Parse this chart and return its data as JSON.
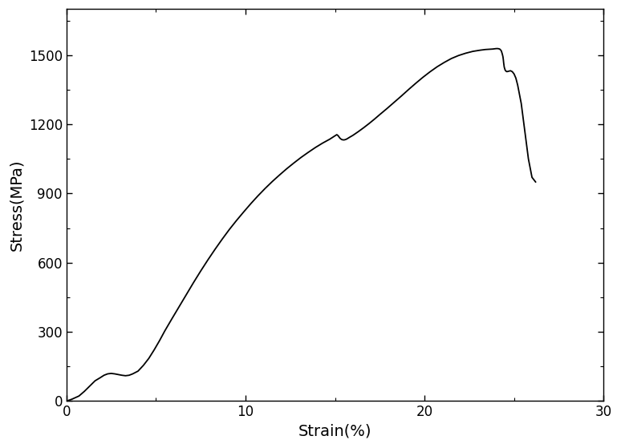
{
  "xlabel": "Strain(%)",
  "ylabel": "Stress(MPa)",
  "xlim": [
    0,
    30
  ],
  "ylim": [
    0,
    1700
  ],
  "xticks": [
    0,
    10,
    20,
    30
  ],
  "yticks": [
    0,
    300,
    600,
    900,
    1200,
    1500
  ],
  "line_color": "#000000",
  "line_width": 1.3,
  "background_color": "#ffffff",
  "curve_points": {
    "strain": [
      0.0,
      0.3,
      0.7,
      1.0,
      1.3,
      1.6,
      1.9,
      2.1,
      2.3,
      2.5,
      2.7,
      2.9,
      3.1,
      3.3,
      3.5,
      3.7,
      4.0,
      4.3,
      4.6,
      4.9,
      5.2,
      5.5,
      5.9,
      6.3,
      6.7,
      7.1,
      7.5,
      7.9,
      8.3,
      8.7,
      9.1,
      9.5,
      9.9,
      10.3,
      10.7,
      11.1,
      11.5,
      11.9,
      12.3,
      12.7,
      13.1,
      13.5,
      13.9,
      14.3,
      14.7,
      15.0,
      15.1,
      15.15,
      15.2,
      15.25,
      15.3,
      15.35,
      15.4,
      15.5,
      15.6,
      15.7,
      15.8,
      16.0,
      16.3,
      16.6,
      16.9,
      17.2,
      17.5,
      17.9,
      18.3,
      18.7,
      19.1,
      19.5,
      19.9,
      20.3,
      20.7,
      21.1,
      21.5,
      21.9,
      22.3,
      22.7,
      23.1,
      23.4,
      23.6,
      23.8,
      23.9,
      24.0,
      24.1,
      24.15,
      24.2,
      24.22,
      24.25,
      24.28,
      24.3,
      24.32,
      24.35,
      24.38,
      24.4,
      24.42,
      24.45,
      24.5,
      24.55,
      24.6,
      24.7,
      24.8,
      24.9,
      25.0,
      25.1,
      25.2,
      25.4,
      25.6,
      25.8,
      26.0,
      26.2
    ],
    "stress": [
      0,
      8,
      22,
      42,
      65,
      88,
      102,
      112,
      118,
      120,
      118,
      115,
      112,
      110,
      112,
      118,
      130,
      155,
      185,
      222,
      262,
      305,
      358,
      410,
      462,
      514,
      564,
      612,
      658,
      702,
      744,
      783,
      820,
      856,
      890,
      922,
      952,
      980,
      1007,
      1032,
      1056,
      1078,
      1099,
      1118,
      1135,
      1150,
      1155,
      1152,
      1148,
      1142,
      1138,
      1135,
      1133,
      1132,
      1134,
      1138,
      1143,
      1152,
      1168,
      1185,
      1203,
      1222,
      1242,
      1268,
      1295,
      1322,
      1350,
      1377,
      1403,
      1427,
      1449,
      1468,
      1485,
      1498,
      1508,
      1516,
      1521,
      1524,
      1525,
      1526,
      1527,
      1528,
      1528,
      1527,
      1526,
      1524,
      1522,
      1519,
      1515,
      1510,
      1502,
      1492,
      1480,
      1465,
      1448,
      1435,
      1430,
      1428,
      1430,
      1432,
      1428,
      1418,
      1400,
      1370,
      1290,
      1170,
      1050,
      970,
      950
    ]
  }
}
